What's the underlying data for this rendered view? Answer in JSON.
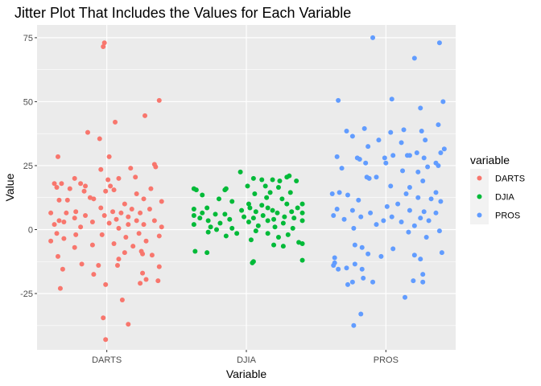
{
  "chart_data": {
    "type": "scatter",
    "title": "Jitter Plot That Includes the Values for Each Variable",
    "xlabel": "Variable",
    "ylabel": "Value",
    "categories": [
      "DARTS",
      "DJIA",
      "PROS"
    ],
    "ylim": [
      -47,
      80
    ],
    "yticks": [
      -25,
      0,
      25,
      50,
      75
    ],
    "grid": true,
    "legend": {
      "title": "variable",
      "position": "right",
      "entries": [
        "DARTS",
        "DJIA",
        "PROS"
      ]
    },
    "colors": {
      "DARTS": "#F8766D",
      "DJIA": "#00BA38",
      "PROS": "#619CFF"
    },
    "series": [
      {
        "name": "DARTS",
        "points": [
          [
            -0.02,
            73
          ],
          [
            -0.03,
            71.5
          ],
          [
            0.44,
            50.5
          ],
          [
            0.07,
            42
          ],
          [
            0.32,
            44.5
          ],
          [
            -0.16,
            38
          ],
          [
            -0.06,
            35.5
          ],
          [
            0.02,
            28.5
          ],
          [
            -0.41,
            28.5
          ],
          [
            0.2,
            24
          ],
          [
            0.4,
            25.5
          ],
          [
            0.41,
            24.5
          ],
          [
            -0.05,
            23.5
          ],
          [
            -0.27,
            20
          ],
          [
            0.24,
            20.5
          ],
          [
            0.01,
            19.5
          ],
          [
            0.1,
            20
          ],
          [
            -0.38,
            18
          ],
          [
            -0.22,
            18
          ],
          [
            -0.44,
            18
          ],
          [
            -0.18,
            17
          ],
          [
            0.03,
            17
          ],
          [
            -0.42,
            16.5
          ],
          [
            0.37,
            16
          ],
          [
            0.06,
            15.5
          ],
          [
            -0.31,
            16
          ],
          [
            -0.01,
            15
          ],
          [
            -0.19,
            15
          ],
          [
            0.25,
            14
          ],
          [
            -0.14,
            12.5
          ],
          [
            -0.4,
            11.5
          ],
          [
            -0.33,
            11.5
          ],
          [
            -0.11,
            12
          ],
          [
            0.31,
            12
          ],
          [
            0.15,
            10
          ],
          [
            0.46,
            11
          ],
          [
            -0.05,
            8.5
          ],
          [
            0.21,
            8
          ],
          [
            0.36,
            8
          ],
          [
            -0.26,
            7
          ],
          [
            0.05,
            7
          ],
          [
            -0.47,
            6.5
          ],
          [
            -0.34,
            6.5
          ],
          [
            0.12,
            6.5
          ],
          [
            0.28,
            6.5
          ],
          [
            -0.18,
            5.5
          ],
          [
            -0.02,
            5.5
          ],
          [
            0.18,
            5
          ],
          [
            -0.27,
            4.5
          ],
          [
            0.08,
            4
          ],
          [
            0.25,
            3.5
          ],
          [
            -0.4,
            3.5
          ],
          [
            -0.36,
            3
          ],
          [
            0.4,
            3.5
          ],
          [
            -0.12,
            3
          ],
          [
            0.02,
            2.5
          ],
          [
            0.18,
            2
          ],
          [
            -0.44,
            2
          ],
          [
            0.31,
            2
          ],
          [
            -0.22,
            1
          ],
          [
            0.46,
            1
          ],
          [
            0.1,
            0.5
          ],
          [
            -0.42,
            -1.5
          ],
          [
            0.27,
            -1.5
          ],
          [
            -0.04,
            -2
          ],
          [
            -0.26,
            -2
          ],
          [
            0.44,
            -2.5
          ],
          [
            0.16,
            -3
          ],
          [
            -0.36,
            -3.5
          ],
          [
            -0.47,
            -4.5
          ],
          [
            0.33,
            -4.5
          ],
          [
            0.06,
            -5.5
          ],
          [
            -0.12,
            -6
          ],
          [
            0.22,
            -6.5
          ],
          [
            -0.27,
            -7
          ],
          [
            0.29,
            -8.5
          ],
          [
            0.15,
            -9
          ],
          [
            0.3,
            -9.5
          ],
          [
            0.38,
            -10
          ],
          [
            -0.41,
            -10.5
          ],
          [
            0.1,
            -11.5
          ],
          [
            -0.21,
            -13.5
          ],
          [
            -0.07,
            -14
          ],
          [
            0.09,
            -14
          ],
          [
            0.44,
            -14.5
          ],
          [
            -0.37,
            -15.5
          ],
          [
            0.3,
            -17
          ],
          [
            -0.11,
            -17.5
          ],
          [
            0.33,
            -19.5
          ],
          [
            0.43,
            -20
          ],
          [
            0.28,
            -21
          ],
          [
            -0.01,
            -21.5
          ],
          [
            -0.39,
            -23
          ],
          [
            0.13,
            -27.5
          ],
          [
            -0.03,
            -34.5
          ],
          [
            0.18,
            -37
          ],
          [
            -0.01,
            -43
          ]
        ]
      },
      {
        "name": "DJIA",
        "points": [
          [
            -0.05,
            22.5
          ],
          [
            0.06,
            20
          ],
          [
            0.34,
            20.5
          ],
          [
            0.36,
            21
          ],
          [
            0.13,
            19.5
          ],
          [
            0.22,
            19.5
          ],
          [
            0.28,
            19
          ],
          [
            0.42,
            19
          ],
          [
            -0.44,
            16
          ],
          [
            -0.42,
            15.5
          ],
          [
            0.01,
            17
          ],
          [
            0.16,
            17
          ],
          [
            -0.17,
            16
          ],
          [
            -0.18,
            15.5
          ],
          [
            0.27,
            16.5
          ],
          [
            0.07,
            14
          ],
          [
            0.2,
            14.5
          ],
          [
            0.37,
            14.5
          ],
          [
            -0.37,
            13.5
          ],
          [
            0.17,
            12.5
          ],
          [
            -0.23,
            12
          ],
          [
            0.3,
            12
          ],
          [
            0.47,
            10
          ],
          [
            0.02,
            10
          ],
          [
            -0.12,
            11
          ],
          [
            0.13,
            9.5
          ],
          [
            0.34,
            10
          ],
          [
            0.03,
            8.5
          ],
          [
            0.43,
            8.5
          ],
          [
            0.18,
            8.5
          ],
          [
            -0.44,
            8
          ],
          [
            -0.33,
            8.5
          ],
          [
            -0.04,
            7.5
          ],
          [
            0.22,
            7.5
          ],
          [
            0.38,
            7
          ],
          [
            0.47,
            6.5
          ],
          [
            -0.37,
            6.5
          ],
          [
            0.08,
            7
          ],
          [
            0.26,
            6.5
          ],
          [
            -0.18,
            6
          ],
          [
            -0.44,
            5.5
          ],
          [
            -0.26,
            6
          ],
          [
            0.14,
            5.5
          ],
          [
            0.32,
            5
          ],
          [
            -0.02,
            5
          ],
          [
            0.4,
            4.5
          ],
          [
            -0.14,
            4
          ],
          [
            0.06,
            4.5
          ],
          [
            -0.39,
            4.5
          ],
          [
            0.23,
            4
          ],
          [
            -0.32,
            3.5
          ],
          [
            0.47,
            3.5
          ],
          [
            0.18,
            3.5
          ],
          [
            -0.22,
            2.5
          ],
          [
            0.02,
            3
          ],
          [
            0.31,
            2.5
          ],
          [
            -0.44,
            2
          ],
          [
            0.1,
            1.5
          ],
          [
            -0.3,
            1
          ],
          [
            0.24,
            1
          ],
          [
            -0.12,
            0.5
          ],
          [
            0.39,
            0.5
          ],
          [
            -0.25,
            0
          ],
          [
            0.08,
            -0.5
          ],
          [
            -0.32,
            -1
          ],
          [
            0.18,
            -1.5
          ],
          [
            -0.08,
            -1.5
          ],
          [
            0.35,
            -2
          ],
          [
            -0.17,
            -2.5
          ],
          [
            0.27,
            -3
          ],
          [
            0.04,
            -4
          ],
          [
            0.44,
            -5
          ],
          [
            0.47,
            -5.5
          ],
          [
            0.31,
            -6.5
          ],
          [
            0.23,
            -6
          ],
          [
            -0.43,
            -8.5
          ],
          [
            -0.33,
            -9
          ],
          [
            0.47,
            -12
          ],
          [
            0.05,
            -13
          ],
          [
            0.06,
            -12.5
          ]
        ]
      },
      {
        "name": "PROS",
        "points": [
          [
            -0.11,
            75
          ],
          [
            0.45,
            73
          ],
          [
            0.24,
            67
          ],
          [
            -0.4,
            50.5
          ],
          [
            0.05,
            51
          ],
          [
            0.48,
            50
          ],
          [
            0.29,
            47.5
          ],
          [
            -0.18,
            39.5
          ],
          [
            0.15,
            39
          ],
          [
            -0.33,
            38.5
          ],
          [
            0.04,
            38
          ],
          [
            0.3,
            38.5
          ],
          [
            0.44,
            41
          ],
          [
            -0.28,
            36.5
          ],
          [
            -0.06,
            35
          ],
          [
            0.13,
            34
          ],
          [
            0.33,
            35
          ],
          [
            -0.15,
            32.5
          ],
          [
            0.49,
            31.5
          ],
          [
            0.46,
            30
          ],
          [
            0.2,
            29
          ],
          [
            0.06,
            29
          ],
          [
            0.26,
            30
          ],
          [
            -0.41,
            28.5
          ],
          [
            -0.01,
            28
          ],
          [
            0.32,
            28
          ],
          [
            0.18,
            29
          ],
          [
            -0.24,
            28
          ],
          [
            -0.22,
            27.5
          ],
          [
            -0.17,
            26
          ],
          [
            0.0,
            26
          ],
          [
            0.42,
            26
          ],
          [
            0.44,
            25
          ],
          [
            0.35,
            24.5
          ],
          [
            -0.37,
            24
          ],
          [
            0.14,
            23
          ],
          [
            0.27,
            22.5
          ],
          [
            -0.16,
            20.5
          ],
          [
            -0.14,
            20
          ],
          [
            -0.08,
            20.5
          ],
          [
            0.31,
            19
          ],
          [
            0.04,
            17
          ],
          [
            0.2,
            16.5
          ],
          [
            0.42,
            14.5
          ],
          [
            0.27,
            12.5
          ],
          [
            -0.45,
            14
          ],
          [
            -0.39,
            14.5
          ],
          [
            -0.32,
            13.5
          ],
          [
            0.17,
            14
          ],
          [
            0.38,
            12
          ],
          [
            -0.23,
            11.5
          ],
          [
            0.1,
            10
          ],
          [
            0.46,
            11
          ],
          [
            0.01,
            9
          ],
          [
            -0.41,
            8
          ],
          [
            -0.28,
            7.5
          ],
          [
            0.32,
            7
          ],
          [
            0.2,
            7.5
          ],
          [
            -0.13,
            6.5
          ],
          [
            0.42,
            6.5
          ],
          [
            -0.44,
            5.5
          ],
          [
            -0.21,
            5
          ],
          [
            0.05,
            5
          ],
          [
            0.29,
            4.5
          ],
          [
            -0.35,
            4
          ],
          [
            0.36,
            3.5
          ],
          [
            -0.02,
            3.5
          ],
          [
            0.13,
            3
          ],
          [
            -0.08,
            2
          ],
          [
            0.24,
            1.5
          ],
          [
            -0.27,
            0.5
          ],
          [
            0.45,
            -0.5
          ],
          [
            0.19,
            -1
          ],
          [
            0.34,
            -3
          ],
          [
            -0.26,
            -6
          ],
          [
            -0.2,
            -7
          ],
          [
            0.06,
            -7.5
          ],
          [
            -0.15,
            -9.5
          ],
          [
            0.24,
            -10
          ],
          [
            -0.04,
            -10.5
          ],
          [
            0.47,
            -9
          ],
          [
            -0.43,
            -11
          ],
          [
            0.29,
            -11.5
          ],
          [
            -0.43,
            -13
          ],
          [
            -0.26,
            -13.5
          ],
          [
            -0.44,
            -14
          ],
          [
            -0.33,
            -15
          ],
          [
            -0.2,
            -15.5
          ],
          [
            -0.4,
            -15.5
          ],
          [
            0.31,
            -17.5
          ],
          [
            -0.19,
            -19
          ],
          [
            0.23,
            -20
          ],
          [
            0.31,
            -20.5
          ],
          [
            -0.28,
            -20.5
          ],
          [
            -0.11,
            -20.5
          ],
          [
            -0.32,
            -21.5
          ],
          [
            0.16,
            -26.5
          ],
          [
            -0.21,
            -33
          ],
          [
            -0.27,
            -37.5
          ]
        ]
      }
    ]
  }
}
